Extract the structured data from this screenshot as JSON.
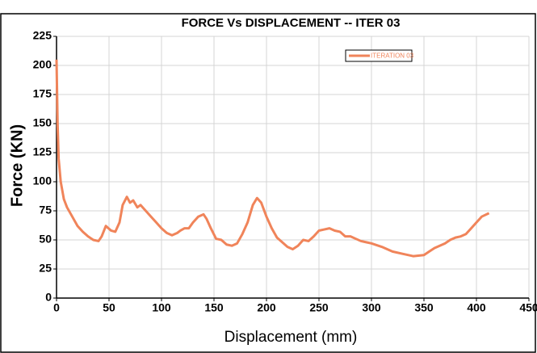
{
  "chart_data": {
    "type": "line",
    "title": "FORCE Vs DISPLACEMENT  -- ITER 03",
    "xlabel": "Displacement   (mm)",
    "ylabel": "Force  (KN)",
    "x": [
      0,
      1,
      2,
      4,
      7,
      10,
      15,
      20,
      25,
      30,
      35,
      40,
      43,
      47,
      52,
      56,
      60,
      63,
      67,
      70,
      73,
      77,
      80,
      85,
      90,
      95,
      100,
      105,
      110,
      115,
      118,
      122,
      126,
      130,
      135,
      140,
      143,
      147,
      152,
      157,
      162,
      167,
      172,
      177,
      182,
      187,
      191,
      195,
      200,
      205,
      210,
      215,
      220,
      225,
      230,
      235,
      240,
      245,
      250,
      255,
      260,
      265,
      270,
      275,
      280,
      285,
      290,
      295,
      300,
      310,
      320,
      330,
      340,
      350,
      355,
      360,
      370,
      375,
      380,
      385,
      390,
      395,
      400,
      405,
      412
    ],
    "series": [
      {
        "name": "ITERATION 03",
        "color": "#f0845a",
        "values": [
          205,
          150,
          120,
          100,
          85,
          78,
          70,
          62,
          57,
          53,
          50,
          49,
          53,
          62,
          58,
          57,
          65,
          80,
          87,
          82,
          84,
          78,
          80,
          75,
          70,
          65,
          60,
          56,
          54,
          56,
          58,
          60,
          60,
          65,
          70,
          72,
          68,
          60,
          51,
          50,
          46,
          45,
          47,
          55,
          65,
          80,
          86,
          82,
          70,
          60,
          52,
          48,
          44,
          42,
          45,
          50,
          49,
          53,
          58,
          59,
          60,
          58,
          57,
          53,
          53,
          51,
          49,
          48,
          47,
          44,
          40,
          38,
          36,
          37,
          40,
          43,
          47,
          50,
          52,
          53,
          55,
          60,
          65,
          70,
          73
        ]
      }
    ],
    "xlim": [
      0,
      450
    ],
    "xticks": [
      0,
      50,
      100,
      150,
      200,
      250,
      300,
      350,
      400,
      450
    ],
    "ylim": [
      0,
      225
    ],
    "yticks": [
      0,
      25,
      50,
      75,
      100,
      125,
      150,
      175,
      200,
      225
    ],
    "grid": true,
    "legend": "upper right"
  }
}
